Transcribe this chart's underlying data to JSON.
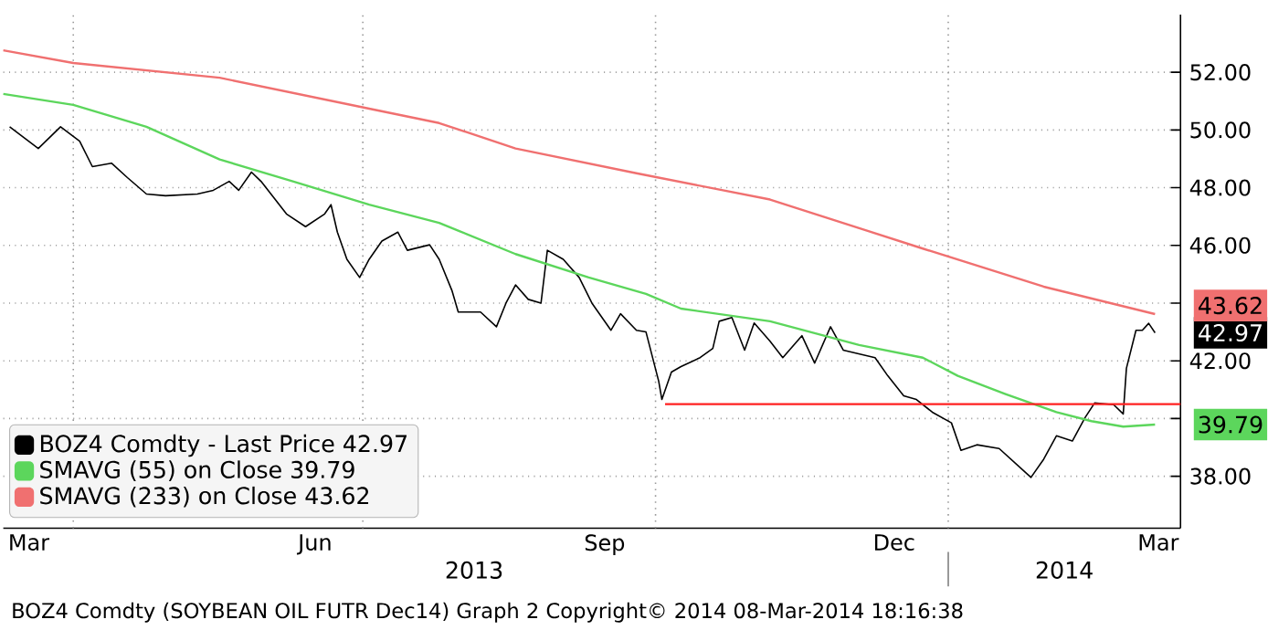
{
  "chart_data": {
    "type": "line",
    "xlim": [
      "2013-03-10",
      "2014-03-15"
    ],
    "ylim": [
      36.2,
      54
    ],
    "xticks": [
      {
        "value": "2013-03-18",
        "label": "Mar"
      },
      {
        "value": "2013-06-16",
        "label": "Jun"
      },
      {
        "value": "2013-09-15",
        "label": "Sep"
      },
      {
        "value": "2013-12-15",
        "label": "Dec"
      },
      {
        "value": "2014-03-08",
        "label": "Mar"
      },
      {
        "value": "2013-04-01",
        "label": null
      },
      {
        "value": "2013-07-01",
        "label": null
      },
      {
        "value": "2013-10-01",
        "label": null
      },
      {
        "value": "2014-01-01",
        "label": null
      }
    ],
    "yticks": [
      {
        "value": 38,
        "label": "38.00"
      },
      {
        "value": 40,
        "label": null
      },
      {
        "value": 42,
        "label": "42.00"
      },
      {
        "value": 44,
        "label": null
      },
      {
        "value": 46,
        "label": "46.00"
      },
      {
        "value": 48,
        "label": "48.00"
      },
      {
        "value": 50,
        "label": "50.00"
      },
      {
        "value": 52,
        "label": "52.00"
      }
    ],
    "grid": true,
    "legend": "bottom left",
    "marker": "none",
    "series": [
      {
        "name": "BOZ4 Comdty - Last Price 42.97",
        "color": "#000000",
        "x": [
          "2013-03-12",
          "2013-03-21",
          "2013-03-28",
          "2013-04-03",
          "2013-04-07",
          "2013-04-13",
          "2013-04-18",
          "2013-04-24",
          "2013-04-30",
          "2013-05-10",
          "2013-05-15",
          "2013-05-20",
          "2013-05-23",
          "2013-05-27",
          "2013-05-30",
          "2013-06-07",
          "2013-06-13",
          "2013-06-19",
          "2013-06-21",
          "2013-06-23",
          "2013-06-26",
          "2013-06-30",
          "2013-07-03",
          "2013-07-07",
          "2013-07-12",
          "2013-07-15",
          "2013-07-22",
          "2013-07-25",
          "2013-07-29",
          "2013-07-31",
          "2013-08-07",
          "2013-08-12",
          "2013-08-15",
          "2013-08-18",
          "2013-08-22",
          "2013-08-26",
          "2013-08-28",
          "2013-09-02",
          "2013-09-07",
          "2013-09-11",
          "2013-09-17",
          "2013-09-20",
          "2013-09-25",
          "2013-09-28",
          "2013-10-02",
          "2013-10-03",
          "2013-10-06",
          "2013-10-09",
          "2013-10-15",
          "2013-10-19",
          "2013-10-21",
          "2013-10-25",
          "2013-10-29",
          "2013-11-01",
          "2013-11-06",
          "2013-11-10",
          "2013-11-16",
          "2013-11-20",
          "2013-11-25",
          "2013-11-29",
          "2013-12-04",
          "2013-12-09",
          "2013-12-13",
          "2013-12-18",
          "2013-12-22",
          "2013-12-27",
          "2014-01-02",
          "2014-01-05",
          "2014-01-10",
          "2014-01-17",
          "2014-01-22",
          "2014-01-27",
          "2014-01-31",
          "2014-02-04",
          "2014-02-09",
          "2014-02-13",
          "2014-02-16",
          "2014-02-22",
          "2014-02-25",
          "2014-02-26",
          "2014-03-01",
          "2014-03-03",
          "2014-03-05",
          "2014-03-07"
        ],
        "values": [
          50.11,
          49.36,
          50.11,
          49.61,
          48.73,
          48.85,
          48.35,
          47.78,
          47.72,
          47.78,
          47.91,
          48.22,
          47.91,
          48.54,
          48.22,
          47.09,
          46.65,
          47.09,
          47.41,
          46.46,
          45.52,
          44.89,
          45.52,
          46.15,
          46.46,
          45.83,
          46.02,
          45.52,
          44.44,
          43.69,
          43.69,
          43.18,
          44.0,
          44.63,
          44.13,
          44.0,
          45.83,
          45.52,
          44.89,
          44.0,
          43.06,
          43.63,
          43.06,
          43.0,
          41.29,
          40.66,
          41.61,
          41.8,
          42.11,
          42.43,
          43.37,
          43.5,
          42.37,
          43.31,
          42.68,
          42.11,
          42.87,
          41.92,
          43.18,
          42.37,
          42.24,
          42.11,
          41.48,
          40.79,
          40.66,
          40.22,
          39.85,
          38.9,
          39.09,
          38.96,
          38.46,
          37.96,
          38.59,
          39.4,
          39.22,
          40.03,
          40.54,
          40.48,
          40.16,
          41.74,
          43.06,
          43.06,
          43.3,
          42.97
        ]
      },
      {
        "name": "SMAVG (55) on Close 39.79",
        "color": "#5cd65c",
        "x": [
          "2013-03-10",
          "2013-04-01",
          "2013-04-24",
          "2013-05-17",
          "2013-06-09",
          "2013-07-03",
          "2013-07-25",
          "2013-08-18",
          "2013-09-10",
          "2013-09-28",
          "2013-10-09",
          "2013-11-06",
          "2013-12-04",
          "2013-12-24",
          "2014-01-04",
          "2014-01-19",
          "2014-02-04",
          "2014-02-15",
          "2014-02-25",
          "2014-03-07"
        ],
        "values": [
          51.25,
          50.87,
          50.11,
          48.98,
          48.22,
          47.41,
          46.78,
          45.7,
          44.89,
          44.32,
          43.81,
          43.37,
          42.55,
          42.11,
          41.48,
          40.85,
          40.22,
          39.91,
          39.72,
          39.79
        ]
      },
      {
        "name": "SMAVG (233) on Close 43.62",
        "color": "#f07070",
        "x": [
          "2013-03-10",
          "2013-04-01",
          "2013-05-17",
          "2013-07-03",
          "2013-07-25",
          "2013-08-18",
          "2013-09-25",
          "2013-11-06",
          "2013-12-24",
          "2014-01-31",
          "2014-03-07"
        ],
        "values": [
          52.76,
          52.32,
          51.81,
          50.74,
          50.24,
          49.36,
          48.5,
          47.59,
          45.89,
          44.57,
          43.62
        ]
      },
      {
        "color": "#ff2020",
        "x": [
          "2013-10-04",
          "2014-03-15"
        ],
        "values": [
          40.5,
          40.5
        ]
      }
    ],
    "annotations": [
      {
        "text": "43.62",
        "x": "2014-03-07",
        "y": 43.62
      },
      {
        "text": "42.97",
        "x": "2014-03-07",
        "y": 42.97
      },
      {
        "text": "39.79",
        "x": "2014-03-07",
        "y": 39.79
      },
      "2013",
      "2014",
      "BOZ4 Comdty (SOYBEAN OIL FUTR  Dec14) Graph 2  Copyright© 2014  08-Mar-2014 18:16:38"
    ]
  }
}
